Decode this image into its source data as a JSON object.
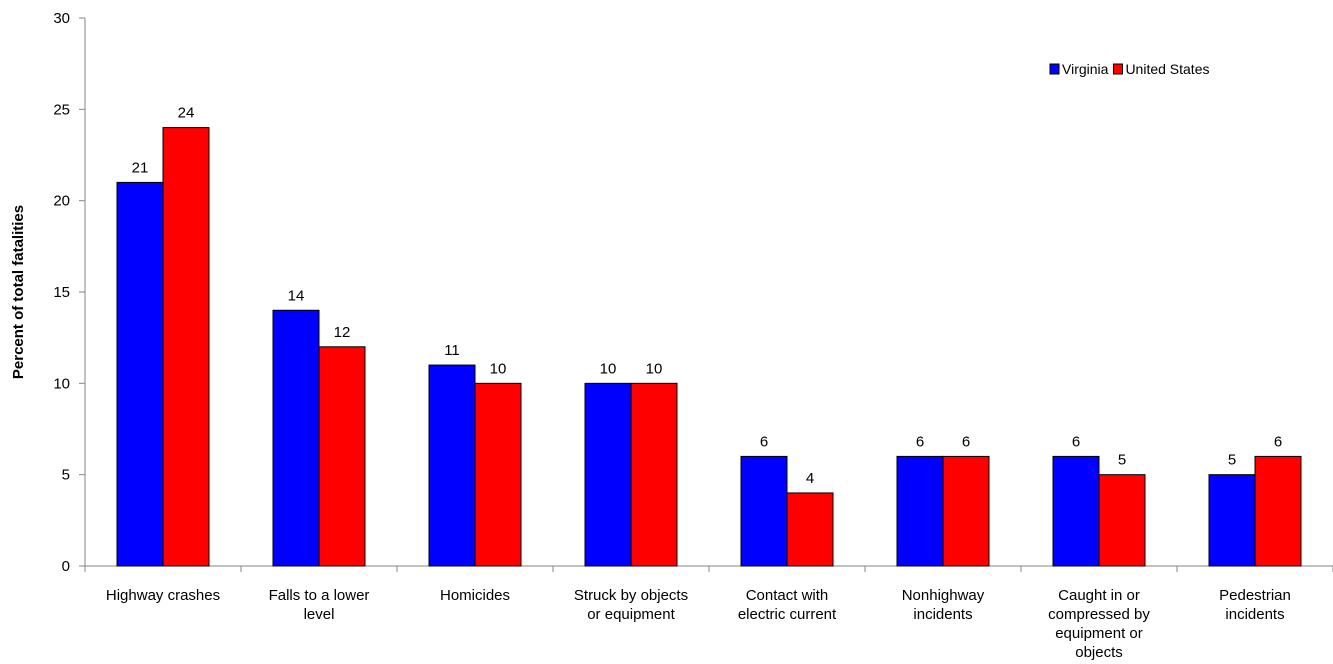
{
  "chart_data": {
    "type": "bar",
    "title": "",
    "xlabel": "",
    "ylabel": "Percent of total fatalities",
    "ylim": [
      0,
      30
    ],
    "yticks": [
      0,
      5,
      10,
      15,
      20,
      25,
      30
    ],
    "grid": false,
    "legend_position": "top-right",
    "categories": [
      [
        "Highway crashes"
      ],
      [
        "Falls to a lower",
        "level"
      ],
      [
        "Homicides"
      ],
      [
        "Struck by objects",
        "or equipment"
      ],
      [
        "Contact with",
        "electric current"
      ],
      [
        "Nonhighway",
        "incidents"
      ],
      [
        "Caught in or",
        "compressed by",
        "equipment or",
        "objects"
      ],
      [
        "Pedestrian",
        "incidents"
      ]
    ],
    "series": [
      {
        "name": "Virginia",
        "color": "#0000FF",
        "values": [
          21,
          14,
          11,
          10,
          6,
          6,
          6,
          5
        ]
      },
      {
        "name": "United States",
        "color": "#FF0000",
        "values": [
          24,
          12,
          10,
          10,
          4,
          6,
          5,
          6
        ]
      }
    ]
  }
}
